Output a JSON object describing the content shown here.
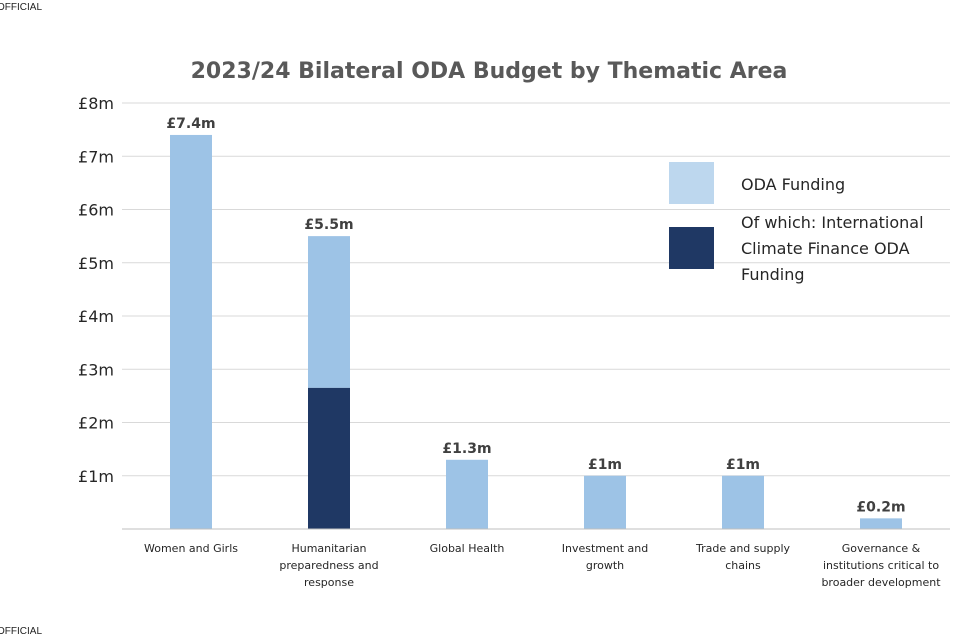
{
  "header_marking": "OFFICIAL",
  "footer_marking": "OFFICIAL",
  "colors": {
    "oda": "#9dc3e6",
    "icf": "#1f3864",
    "legend_oda": "#bdd7ee",
    "grid": "#d9d9d9",
    "axis": "#bfbfbf"
  },
  "chart_data": {
    "type": "bar",
    "title": "2023/24 Bilateral ODA Budget by Thematic Area",
    "xlabel": "",
    "ylabel": "",
    "ylim": [
      0,
      8
    ],
    "yticks": [
      {
        "value": 1,
        "label": "£1m"
      },
      {
        "value": 2,
        "label": "£2m"
      },
      {
        "value": 3,
        "label": "£3m"
      },
      {
        "value": 4,
        "label": "£4m"
      },
      {
        "value": 5,
        "label": "£5m"
      },
      {
        "value": 6,
        "label": "£6m"
      },
      {
        "value": 7,
        "label": "£7m"
      },
      {
        "value": 8,
        "label": "£8m"
      }
    ],
    "grid": true,
    "legend_position": "right",
    "categories": [
      [
        "Women and Girls"
      ],
      [
        "Humanitarian",
        "preparedness and",
        "response"
      ],
      [
        "Global Health"
      ],
      [
        "Investment and",
        "growth"
      ],
      [
        "Trade and supply",
        "chains"
      ],
      [
        "Governance &",
        "institutions critical to",
        "broader development"
      ]
    ],
    "series": [
      {
        "name": "ODA Funding",
        "values": [
          7.4,
          5.5,
          1.3,
          1.0,
          1.0,
          0.2
        ]
      },
      {
        "name": "Of which: International Climate Finance ODA Funding",
        "values": [
          0,
          2.65,
          0,
          0,
          0,
          0
        ]
      }
    ],
    "legend_lines": [
      [
        "ODA Funding"
      ],
      [
        "Of which: International",
        "Climate Finance ODA",
        "Funding"
      ]
    ],
    "data_labels": [
      "£7.4m",
      "£5.5m",
      "£1.3m",
      "£1m",
      "£1m",
      "£0.2m"
    ]
  }
}
